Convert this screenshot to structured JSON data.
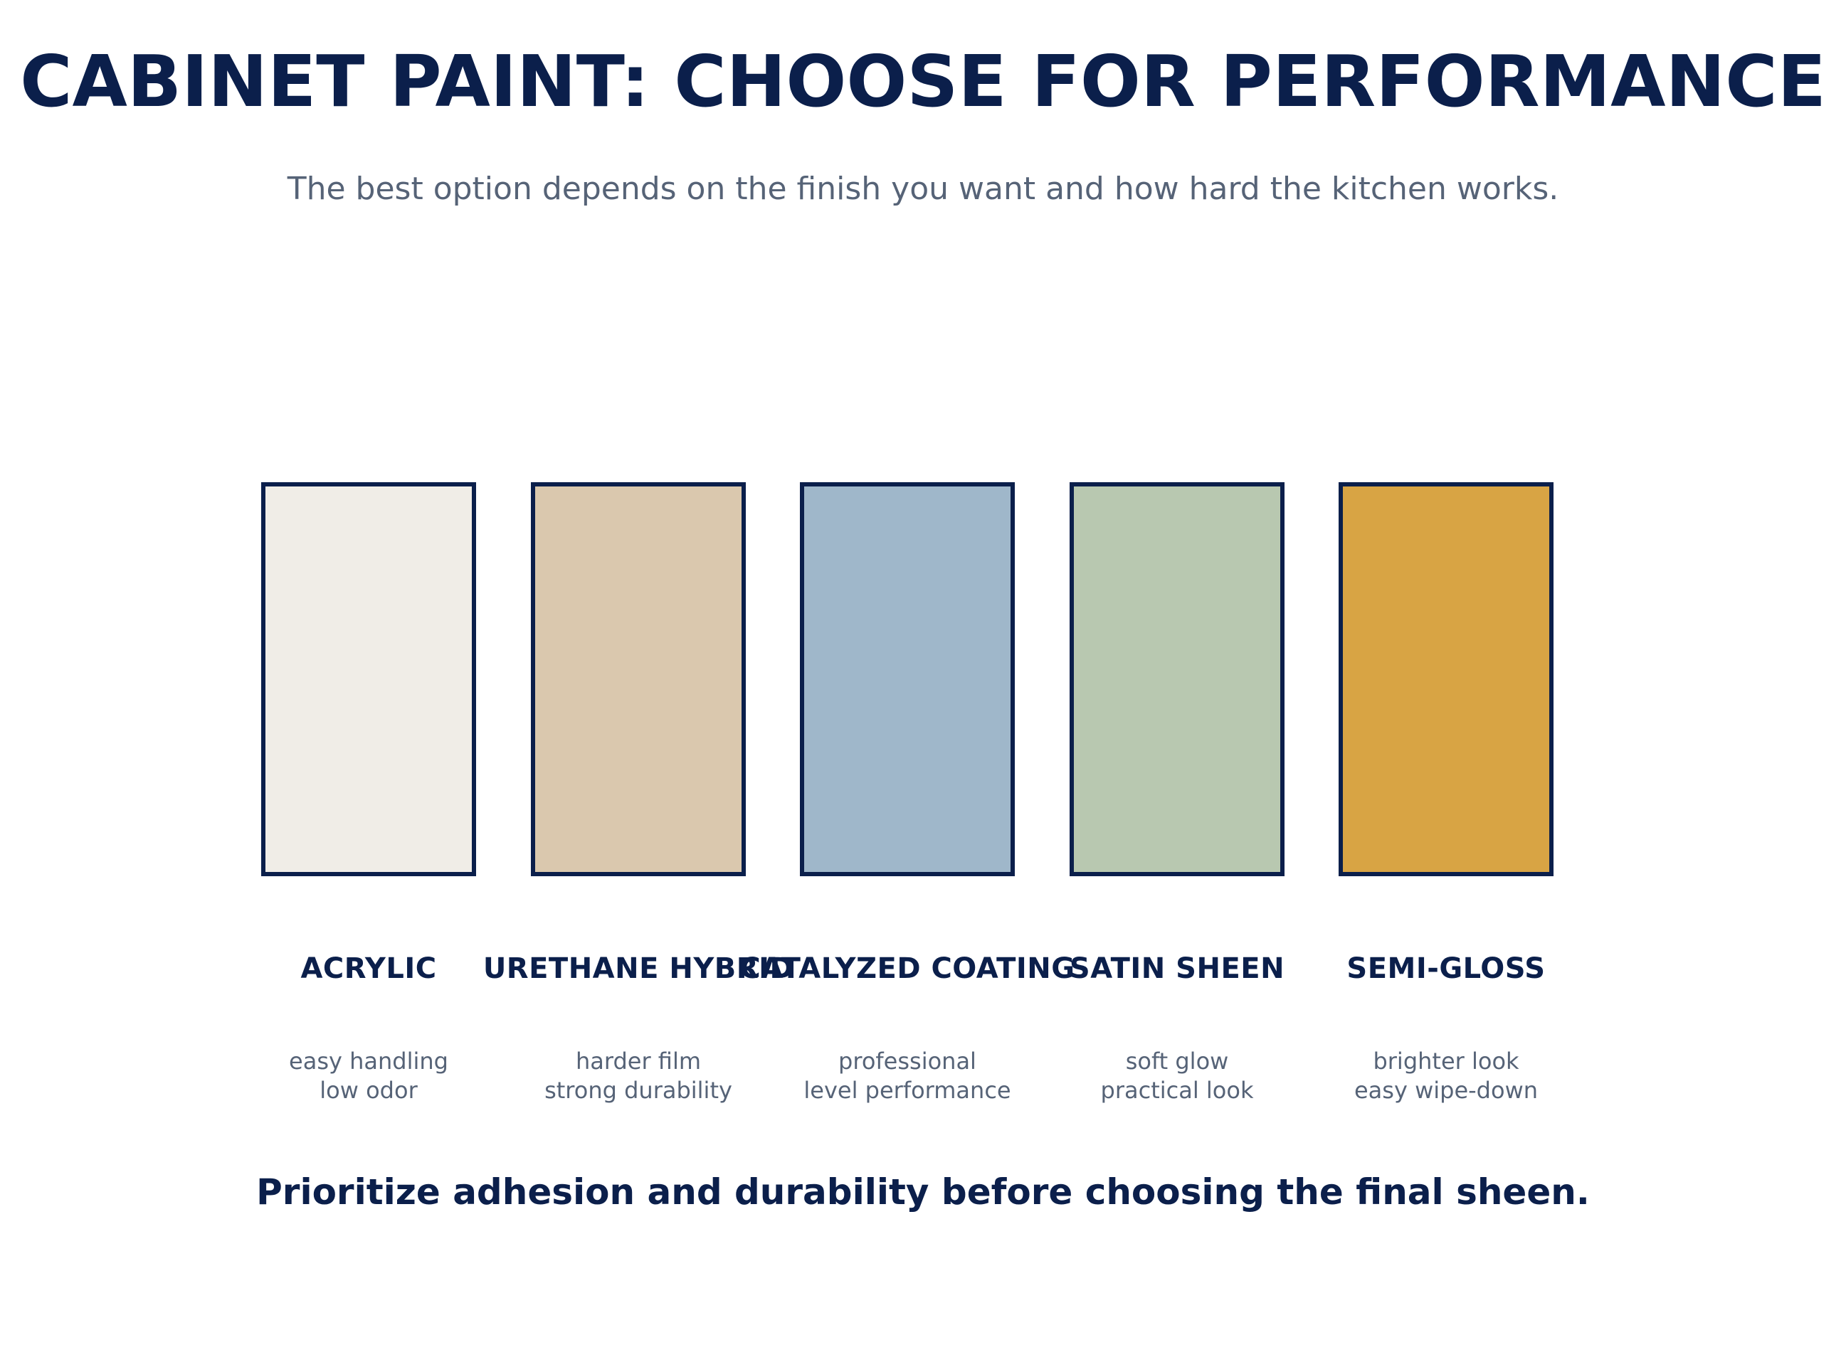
{
  "title": "CABINET PAINT: CHOOSE FOR PERFORMANCE",
  "subtitle": "The best option depends on the finish you want and how hard the kitchen works.",
  "colors": {
    "title": "#0b1f4b",
    "subtitle": "#566377",
    "swatch_border": "#0b1f4b",
    "note": "#566377"
  },
  "swatches": [
    {
      "name": "ACRYLIC",
      "color": "#f0ede7",
      "note_line1": "easy handling",
      "note_line2": "low odor"
    },
    {
      "name": "URETHANE HYBRID",
      "color": "#dac8ae",
      "note_line1": "harder film",
      "note_line2": "strong durability"
    },
    {
      "name": "CATALYZED COATING",
      "color": "#9fb7ca",
      "note_line1": "professional",
      "note_line2": "level performance"
    },
    {
      "name": "SATIN SHEEN",
      "color": "#b8c8b0",
      "note_line1": "soft glow",
      "note_line2": "practical look"
    },
    {
      "name": "SEMI-GLOSS",
      "color": "#d8a444",
      "note_line1": "brighter look",
      "note_line2": "easy wipe-down"
    }
  ],
  "footer": "Prioritize adhesion and durability before choosing the final sheen."
}
